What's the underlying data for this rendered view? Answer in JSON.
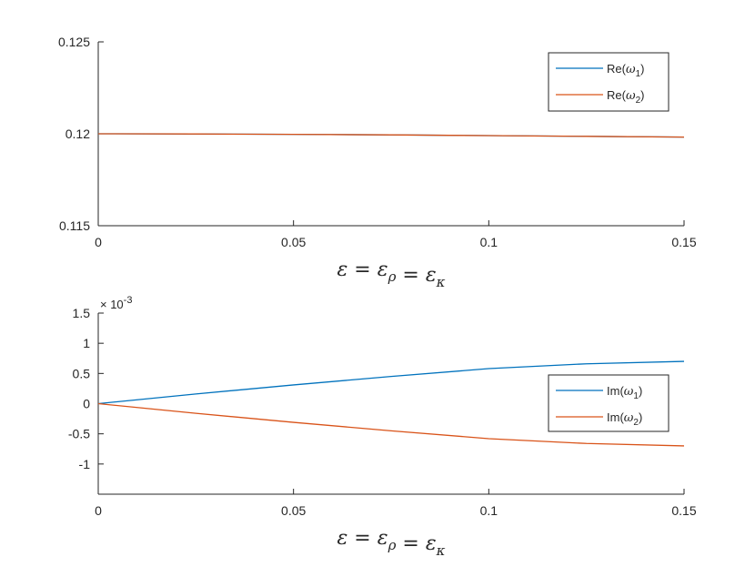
{
  "chart_data": [
    {
      "type": "line",
      "xlabel": "ε = ε_ρ = ε_κ",
      "xlim": [
        0,
        0.15
      ],
      "ylim": [
        0.115,
        0.125
      ],
      "xticks": [
        "0",
        "0.05",
        "0.1",
        "0.15"
      ],
      "yticks": [
        "0.115",
        "0.12",
        "0.125"
      ],
      "grid": false,
      "legend": "top-right",
      "series": [
        {
          "name": "Re(ω1)",
          "legend_base": "Re",
          "legend_sub": "1",
          "color": "#0072BD",
          "x": [
            0,
            0.025,
            0.05,
            0.075,
            0.1,
            0.125,
            0.15
          ],
          "y": [
            0.12,
            0.11999,
            0.11997,
            0.11994,
            0.1199,
            0.11986,
            0.11982
          ]
        },
        {
          "name": "Re(ω2)",
          "legend_base": "Re",
          "legend_sub": "2",
          "color": "#D95319",
          "x": [
            0,
            0.025,
            0.05,
            0.075,
            0.1,
            0.125,
            0.15
          ],
          "y": [
            0.12,
            0.11999,
            0.11997,
            0.11994,
            0.1199,
            0.11986,
            0.11982
          ]
        }
      ]
    },
    {
      "type": "line",
      "xlabel": "ε = ε_ρ = ε_κ",
      "xlim": [
        0,
        0.15
      ],
      "ylim": [
        -0.0015,
        0.0015
      ],
      "xticks": [
        "0",
        "0.05",
        "0.1",
        "0.15"
      ],
      "yticks": [
        "-1",
        "-0.5",
        "0",
        "0.5",
        "1",
        "1.5"
      ],
      "y_exponent": "-3",
      "grid": false,
      "legend": "right",
      "series": [
        {
          "name": "Im(ω1)",
          "legend_base": "Im",
          "legend_sub": "1",
          "color": "#0072BD",
          "x": [
            0,
            0.025,
            0.05,
            0.075,
            0.1,
            0.125,
            0.15
          ],
          "y": [
            0,
            0.00016,
            0.00031,
            0.00045,
            0.00058,
            0.00066,
            0.0007
          ]
        },
        {
          "name": "Im(ω2)",
          "legend_base": "Im",
          "legend_sub": "2",
          "color": "#D95319",
          "x": [
            0,
            0.025,
            0.05,
            0.075,
            0.1,
            0.125,
            0.15
          ],
          "y": [
            0,
            -0.00016,
            -0.00031,
            -0.00045,
            -0.00058,
            -0.00066,
            -0.0007
          ]
        }
      ]
    }
  ]
}
